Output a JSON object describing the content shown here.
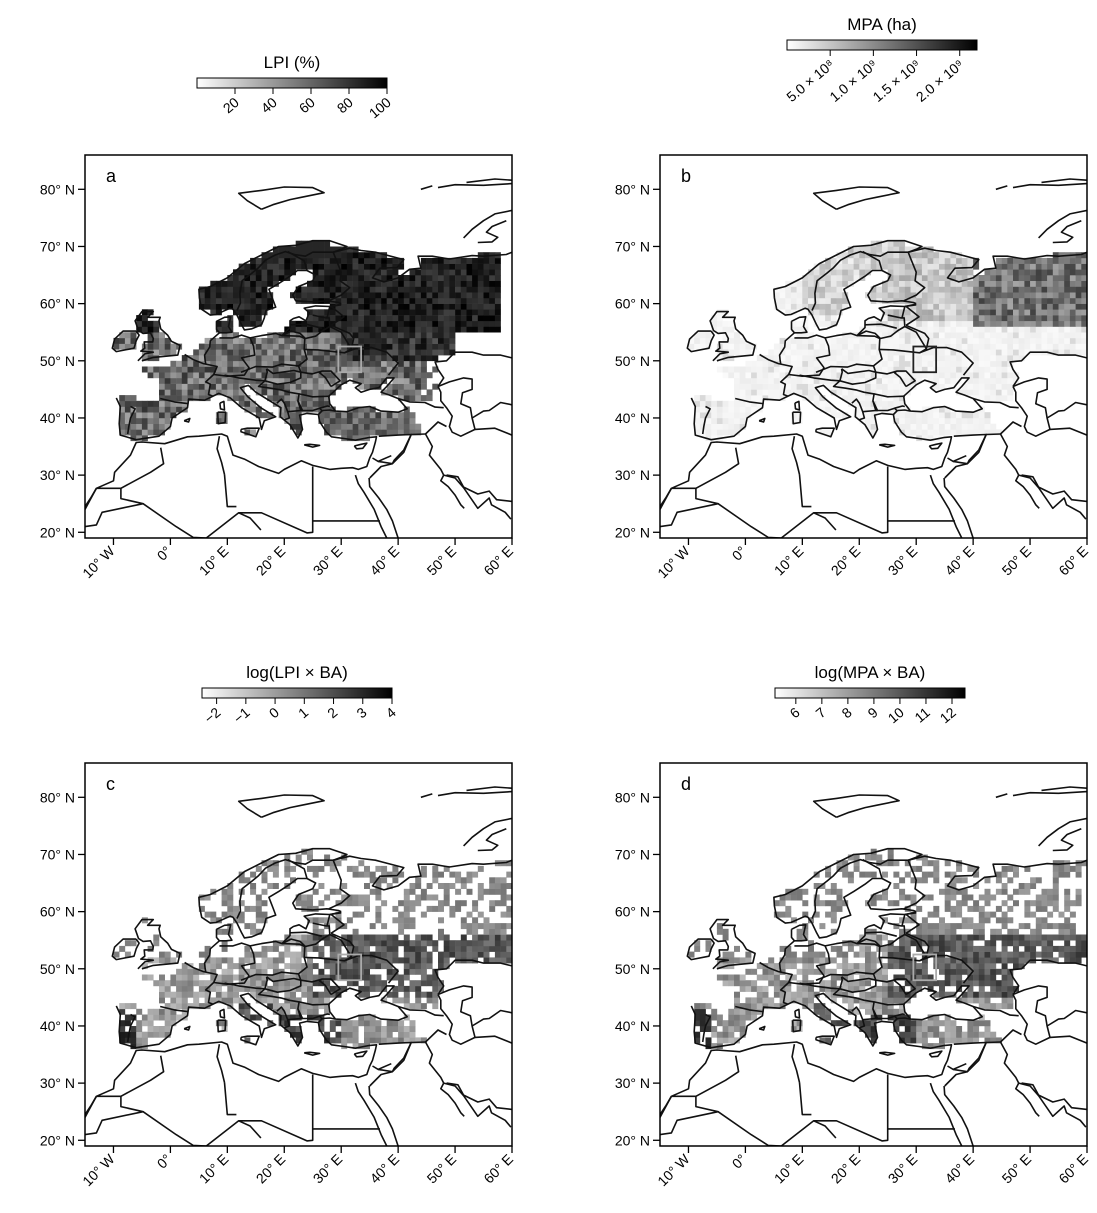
{
  "panels": [
    {
      "letter": "a",
      "colorbar": {
        "title": "LPI (%)",
        "ticks": [
          "20",
          "40",
          "60",
          "80",
          "100"
        ],
        "range": [
          0,
          100
        ]
      },
      "pattern": "lpi"
    },
    {
      "letter": "b",
      "colorbar": {
        "title": "MPA (ha)",
        "ticks": [
          "5.0 × 10⁸",
          "1.0 × 10⁹",
          "1.5 × 10⁹",
          "2.0 × 10⁹"
        ],
        "range": [
          0,
          2200000000.0
        ]
      },
      "pattern": "mpa"
    },
    {
      "letter": "c",
      "colorbar": {
        "title": "log(LPI × BA)",
        "ticks": [
          "−2",
          "−1",
          "0",
          "1",
          "2",
          "3",
          "4"
        ],
        "range": [
          -2.5,
          4
        ]
      },
      "pattern": "lpiba"
    },
    {
      "letter": "d",
      "colorbar": {
        "title": "log(MPA × BA)",
        "ticks": [
          "6",
          "7",
          "8",
          "9",
          "10",
          "11",
          "12"
        ],
        "range": [
          5.2,
          12.5
        ]
      },
      "pattern": "mpaba"
    }
  ],
  "axes": {
    "lat_ticks": [
      "80° N",
      "70° N",
      "60° N",
      "50° N",
      "40° N",
      "30° N",
      "20° N"
    ],
    "lon_ticks": [
      "10° W",
      "0°",
      "10° E",
      "20° E",
      "30° E",
      "40° E",
      "50° E",
      "60° E"
    ],
    "lon_range": [
      -15,
      60
    ],
    "lat_range": [
      19,
      86
    ]
  },
  "study_box": {
    "lon": [
      29.5,
      33.5
    ],
    "lat": [
      48,
      52.5
    ]
  },
  "colors": {
    "ramp_low": "#ffffff",
    "ramp_high": "#000000",
    "coast": "#111111",
    "box": "#aaaaaa"
  }
}
